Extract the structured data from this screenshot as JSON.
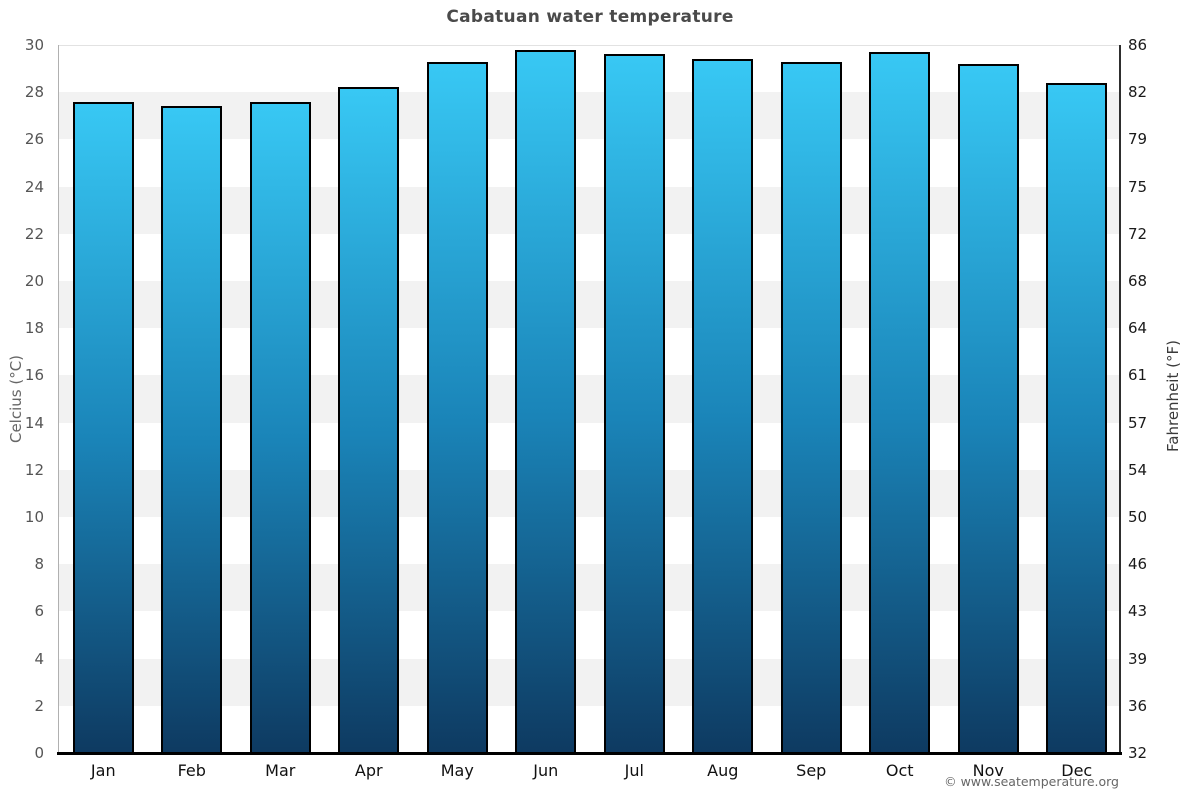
{
  "title": "Cabatuan water temperature",
  "footer": "© www.seatemperature.org",
  "chart_data": {
    "type": "bar",
    "title": "Cabatuan water temperature",
    "categories": [
      "Jan",
      "Feb",
      "Mar",
      "Apr",
      "May",
      "Jun",
      "Jul",
      "Aug",
      "Sep",
      "Oct",
      "Nov",
      "Dec"
    ],
    "values": [
      27.6,
      27.4,
      27.6,
      28.2,
      29.3,
      29.8,
      29.6,
      29.4,
      29.3,
      29.7,
      29.2,
      28.4
    ],
    "unit": "°C",
    "ylabel_left": "Celcius (°C)",
    "ylabel_right": "Fahrenheit (°F)",
    "ylim": [
      0,
      30
    ],
    "ytick_step_celsius": 2,
    "yticks_celsius": [
      30,
      28,
      26,
      24,
      22,
      20,
      18,
      16,
      14,
      12,
      10,
      8,
      6,
      4,
      2,
      0
    ],
    "yticks_fahrenheit": [
      86,
      82,
      79,
      75,
      72,
      68,
      64,
      61,
      57,
      54,
      50,
      46,
      43,
      39,
      36,
      32
    ],
    "grid": "alternating-horizontal-bands",
    "legend": "none",
    "colors": {
      "bar_gradient_top": "#38c8f4",
      "bar_gradient_mid": "#1a84b8",
      "bar_gradient_bottom": "#0e3a61",
      "bar_border": "#000000",
      "band_fill": "#f2f2f2",
      "baseline": "#000000",
      "title_text": "#4a4a4a",
      "footer_text": "#666666"
    }
  }
}
